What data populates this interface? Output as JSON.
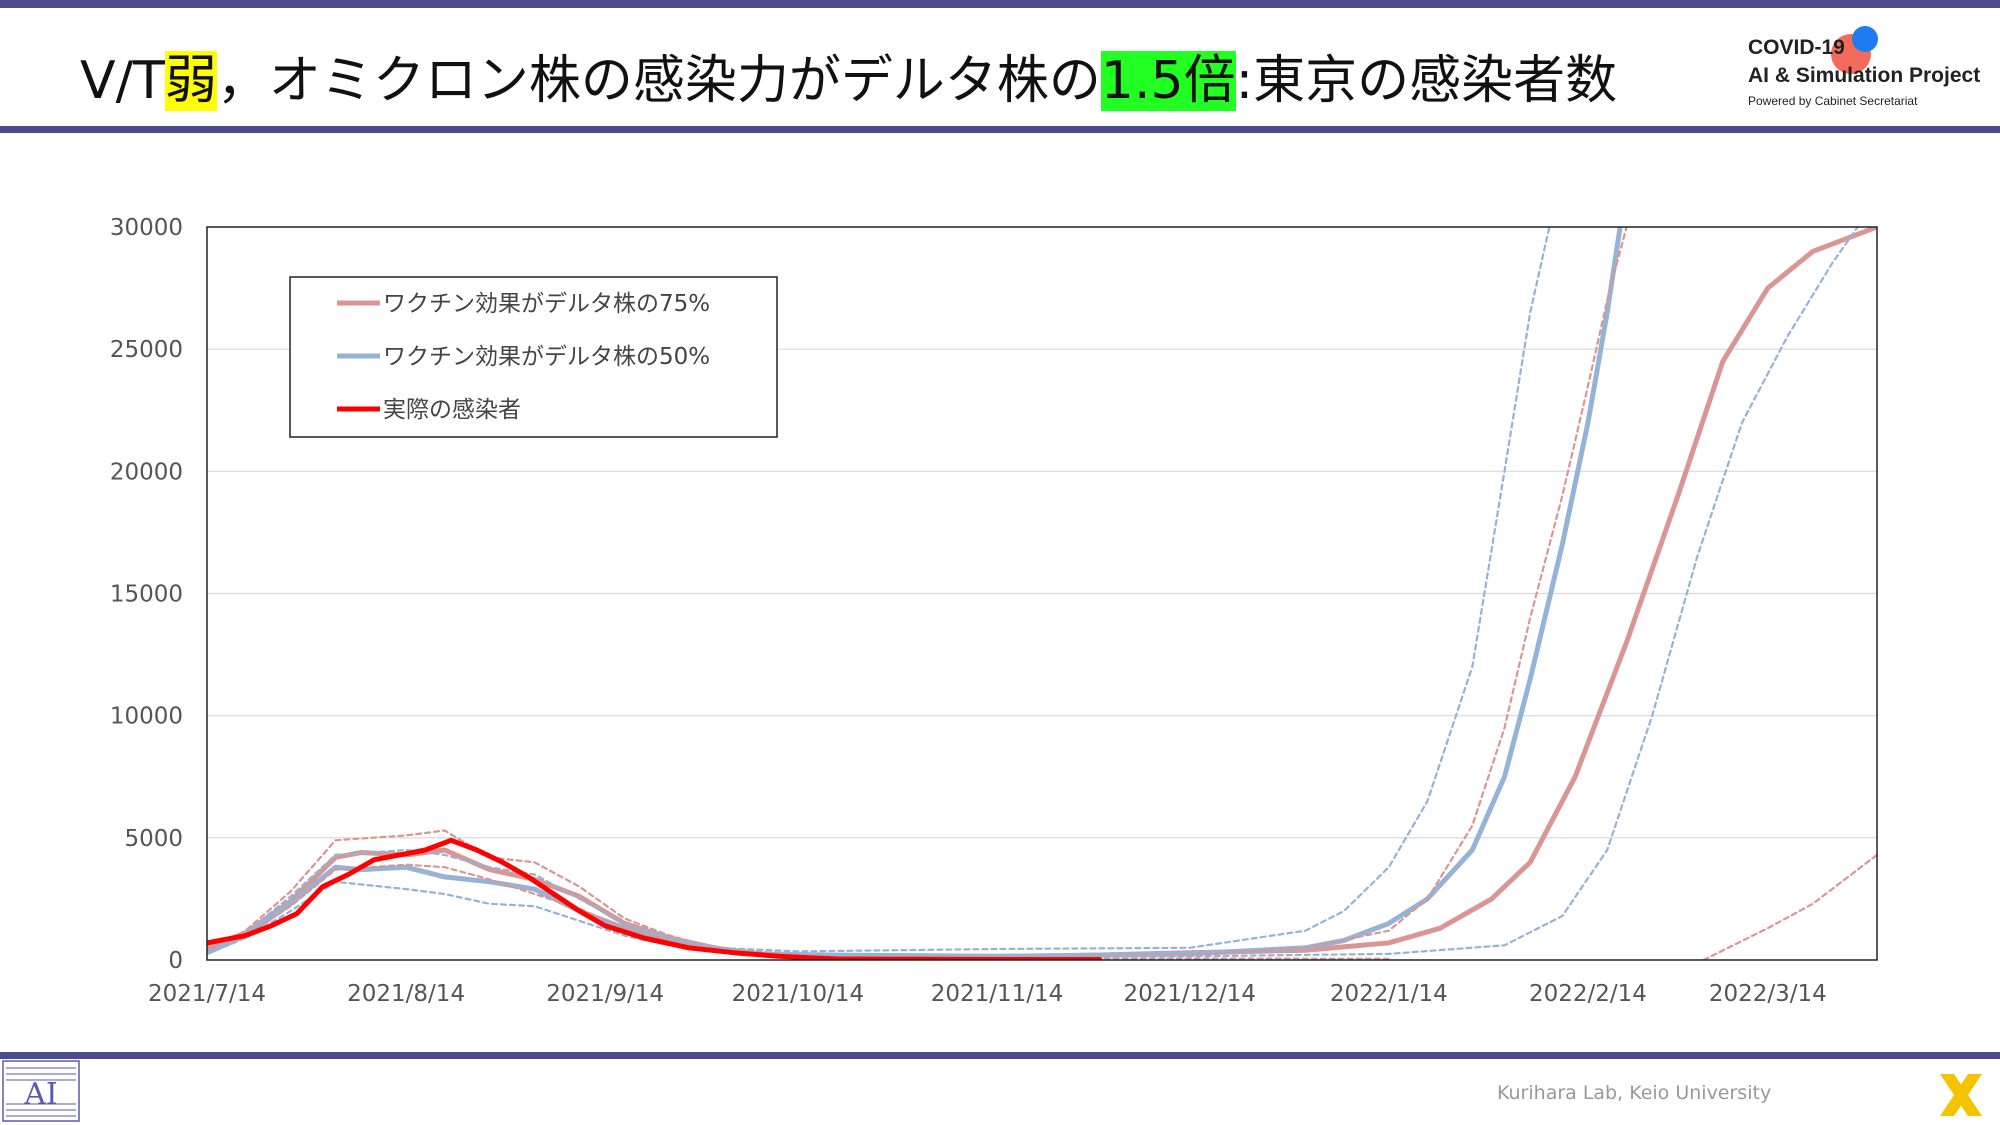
{
  "header": {
    "title_parts": [
      "V/T",
      "弱",
      "，オミクロン株の感染力がデルタ株の",
      "1.5倍",
      ":東京の感染者数"
    ]
  },
  "logo": {
    "line1": "COVID-19",
    "line2": "AI & Simulation Project",
    "line3": "Powered by Cabinet Secretariat"
  },
  "footer": {
    "credit": "Kurihara Lab, Keio University"
  },
  "colors": {
    "accent_bar": "#4a4a8c",
    "highlight_yellow": "#ffff00",
    "highlight_green": "#22ff22",
    "series_75": "#d99694",
    "series_50": "#95b3d7",
    "actual": "#ff0000"
  },
  "chart_data": {
    "type": "line",
    "title": "",
    "xlabel": "",
    "ylabel": "",
    "ylim": [
      0,
      30000
    ],
    "yticks": [
      0,
      5000,
      10000,
      15000,
      20000,
      25000,
      30000
    ],
    "xlim": [
      "2021-07-14",
      "2022-03-31"
    ],
    "xticks": [
      "2021/7/14",
      "2021/8/14",
      "2021/9/14",
      "2021/10/14",
      "2021/11/14",
      "2021/12/14",
      "2022/1/14",
      "2022/2/14",
      "2022/3/14"
    ],
    "grid": "horizontal",
    "legend_position": "top-left",
    "legend": [
      "ワクチン効果がデルタ株の75%",
      "ワクチン効果がデルタ株の50%",
      "実際の感染者"
    ],
    "series": [
      {
        "name": "ワクチン効果がデルタ株の75%",
        "style": "solid",
        "color": "#d99694",
        "x": [
          "2021-07-14",
          "2021-07-20",
          "2021-07-27",
          "2021-08-03",
          "2021-08-07",
          "2021-08-14",
          "2021-08-20",
          "2021-08-27",
          "2021-09-03",
          "2021-09-10",
          "2021-09-17",
          "2021-09-24",
          "2021-10-01",
          "2021-10-08",
          "2021-10-20",
          "2021-11-14",
          "2021-12-14",
          "2022-01-01",
          "2022-01-14",
          "2022-01-22",
          "2022-01-30",
          "2022-02-05",
          "2022-02-12",
          "2022-02-20",
          "2022-02-28",
          "2022-03-07",
          "2022-03-14",
          "2022-03-21",
          "2022-03-31"
        ],
        "y": [
          500,
          1100,
          2400,
          4200,
          4400,
          4300,
          4500,
          3700,
          3300,
          2600,
          1500,
          900,
          500,
          250,
          150,
          100,
          300,
          400,
          700,
          1300,
          2500,
          4000,
          7500,
          13000,
          19000,
          24500,
          27500,
          29000,
          30000
        ]
      },
      {
        "name": "ワクチン効果がデルタ株の50%",
        "style": "solid",
        "color": "#95b3d7",
        "x": [
          "2021-07-14",
          "2021-07-20",
          "2021-07-27",
          "2021-08-03",
          "2021-08-07",
          "2021-08-14",
          "2021-08-20",
          "2021-08-27",
          "2021-09-03",
          "2021-09-10",
          "2021-09-17",
          "2021-09-24",
          "2021-10-01",
          "2021-10-08",
          "2021-10-20",
          "2021-11-14",
          "2021-12-14",
          "2022-01-01",
          "2022-01-07",
          "2022-01-14",
          "2022-01-20",
          "2022-01-27",
          "2022-02-01",
          "2022-02-05",
          "2022-02-10",
          "2022-02-14",
          "2022-02-17",
          "2022-02-19"
        ],
        "y": [
          300,
          1000,
          2300,
          3800,
          3700,
          3800,
          3400,
          3200,
          2900,
          2000,
          1300,
          800,
          400,
          250,
          200,
          150,
          250,
          500,
          800,
          1500,
          2500,
          4500,
          7500,
          11500,
          17000,
          22000,
          26500,
          30000
        ]
      },
      {
        "name": "",
        "style": "dashed",
        "color": "#d99694",
        "x": [
          "2021-07-14",
          "2021-07-20",
          "2021-07-27",
          "2021-08-03",
          "2021-08-14",
          "2021-08-20",
          "2021-08-27",
          "2021-09-03",
          "2021-09-10",
          "2021-09-17",
          "2021-09-24",
          "2021-10-01",
          "2021-10-14",
          "2021-11-14",
          "2021-12-14",
          "2022-01-01",
          "2022-01-14",
          "2022-01-20",
          "2022-01-27",
          "2022-02-01",
          "2022-02-05",
          "2022-02-10",
          "2022-02-14",
          "2022-02-17",
          "2022-02-20"
        ],
        "y": [
          400,
          1200,
          2800,
          4900,
          5100,
          5300,
          4200,
          4000,
          3000,
          1700,
          1000,
          500,
          200,
          150,
          200,
          500,
          1200,
          2500,
          5500,
          9500,
          14000,
          19000,
          23500,
          27000,
          30000
        ]
      },
      {
        "name": "",
        "style": "dashed",
        "color": "#d99694",
        "x": [
          "2021-07-14",
          "2021-07-20",
          "2021-07-27",
          "2021-08-03",
          "2021-08-14",
          "2021-08-20",
          "2021-08-27",
          "2021-09-03",
          "2021-09-10",
          "2021-09-17",
          "2021-09-24",
          "2021-10-01",
          "2021-10-14",
          "2021-11-14",
          "2021-12-14",
          "2022-01-14"
        ],
        "y": [
          350,
          1000,
          2200,
          3700,
          3900,
          3800,
          3300,
          2700,
          2100,
          1300,
          800,
          400,
          150,
          80,
          60,
          50
        ]
      },
      {
        "name": "",
        "style": "dashed",
        "color": "#d99694",
        "x": [
          "2022-03-04",
          "2022-03-14",
          "2022-03-21",
          "2022-03-31"
        ],
        "y": [
          0,
          1300,
          2300,
          4300
        ]
      },
      {
        "name": "",
        "style": "dashed",
        "color": "#95b3d7",
        "x": [
          "2021-07-14",
          "2021-07-20",
          "2021-07-27",
          "2021-08-03",
          "2021-08-14",
          "2021-08-20",
          "2021-08-27",
          "2021-09-03",
          "2021-09-10",
          "2021-09-17",
          "2021-09-24",
          "2021-10-01",
          "2021-10-14",
          "2021-11-14",
          "2021-12-14",
          "2022-01-01",
          "2022-01-07",
          "2022-01-14",
          "2022-01-20",
          "2022-01-27",
          "2022-02-01",
          "2022-02-05",
          "2022-02-08"
        ],
        "y": [
          300,
          1100,
          2600,
          4300,
          4500,
          4300,
          3800,
          3500,
          2500,
          1500,
          900,
          500,
          350,
          450,
          500,
          1200,
          2000,
          3800,
          6500,
          12000,
          20000,
          26500,
          30000
        ]
      },
      {
        "name": "",
        "style": "dashed",
        "color": "#95b3d7",
        "x": [
          "2021-07-14",
          "2021-07-20",
          "2021-07-27",
          "2021-08-03",
          "2021-08-14",
          "2021-08-20",
          "2021-08-27",
          "2021-09-03",
          "2021-09-10",
          "2021-09-17",
          "2021-09-24",
          "2021-10-01",
          "2021-10-14",
          "2021-11-14",
          "2021-12-14",
          "2022-01-14",
          "2022-02-01",
          "2022-02-10",
          "2022-02-17",
          "2022-02-24",
          "2022-03-03",
          "2022-03-10",
          "2022-03-17",
          "2022-03-24",
          "2022-03-28"
        ],
        "y": [
          250,
          900,
          2000,
          3200,
          2900,
          2700,
          2300,
          2200,
          1600,
          1000,
          600,
          350,
          200,
          150,
          150,
          250,
          600,
          1800,
          4500,
          10000,
          16500,
          22000,
          25500,
          28500,
          30000
        ]
      },
      {
        "name": "実際の感染者",
        "style": "solid",
        "color": "#ff0000",
        "x": [
          "2021-07-14",
          "2021-07-20",
          "2021-07-24",
          "2021-07-28",
          "2021-08-01",
          "2021-08-05",
          "2021-08-09",
          "2021-08-13",
          "2021-08-17",
          "2021-08-21",
          "2021-08-25",
          "2021-08-29",
          "2021-09-02",
          "2021-09-06",
          "2021-09-10",
          "2021-09-14",
          "2021-09-20",
          "2021-09-27",
          "2021-10-04",
          "2021-10-11",
          "2021-10-20",
          "2021-11-01",
          "2021-11-14",
          "2021-11-30"
        ],
        "y": [
          700,
          1000,
          1400,
          1900,
          3000,
          3500,
          4100,
          4300,
          4500,
          4900,
          4500,
          4000,
          3400,
          2700,
          2000,
          1400,
          900,
          500,
          300,
          150,
          40,
          30,
          20,
          20
        ]
      }
    ]
  }
}
